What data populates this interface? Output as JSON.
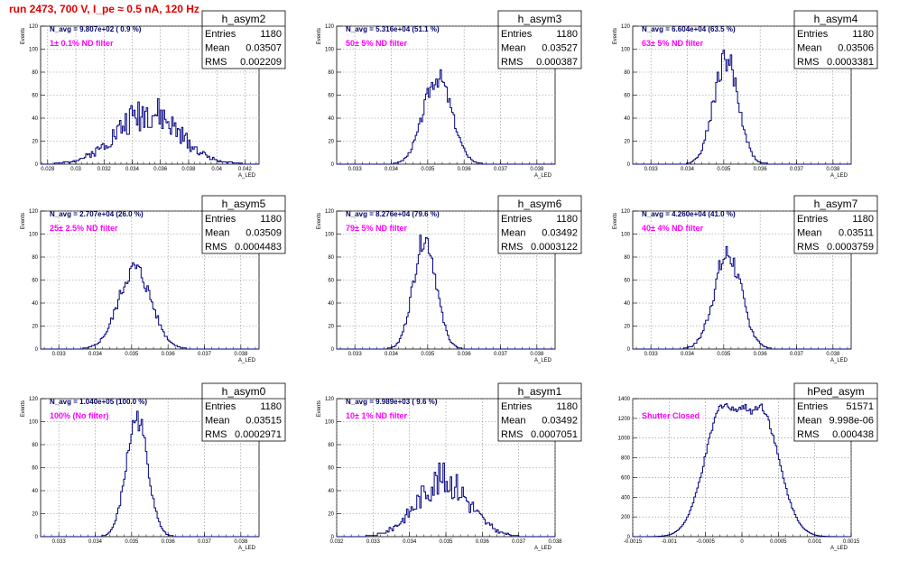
{
  "header": {
    "run_title": "run 2473,   700 V, I_pe ≈ 0.5 nA, 120 Hz"
  },
  "chart_data": [
    {
      "type": "histogram",
      "id": "h_asym2",
      "ylabel": "Events",
      "xlabel": "A_LED",
      "xlim": [
        0.0275,
        0.043
      ],
      "ylim": [
        0,
        120
      ],
      "xticks": [
        0.028,
        0.03,
        0.032,
        0.034,
        0.036,
        0.038,
        0.04,
        0.042
      ],
      "xtick_labels": [
        "0.028",
        "0.03",
        "0.032",
        "0.034",
        "0.036",
        "0.038",
        "0.04",
        "0.042"
      ],
      "yticks": [
        0,
        20,
        40,
        60,
        80,
        100,
        120
      ],
      "annotation": "N_avg = 9.807e+02 ( 0.9 %)",
      "filter_label": "1± 0.1% ND filter",
      "stats": {
        "title": "h_asym2",
        "rows": [
          {
            "name": "Entries",
            "value": "1180"
          },
          {
            "name": "Mean",
            "value": "0.03507"
          },
          {
            "name": "RMS",
            "value": "0.002209"
          }
        ]
      },
      "mean": 0.03507,
      "rms": 0.002209,
      "peak": 45,
      "shape": "single",
      "bin_width": 0.0001,
      "noise": 0.35,
      "seed": 2
    },
    {
      "type": "histogram",
      "id": "h_asym3",
      "ylabel": "Events",
      "xlabel": "A_LED",
      "xlim": [
        0.0325,
        0.0385
      ],
      "ylim": [
        0,
        120
      ],
      "xticks": [
        0.033,
        0.034,
        0.035,
        0.036,
        0.037,
        0.038
      ],
      "xtick_labels": [
        "0.033",
        "0.034",
        "0.035",
        "0.036",
        "0.037",
        "0.038"
      ],
      "yticks": [
        0,
        20,
        40,
        60,
        80,
        100,
        120
      ],
      "annotation": "N_avg = 5.316e+04 (51.1 %)",
      "filter_label": "50± 5% ND filter",
      "stats": {
        "title": "h_asym3",
        "rows": [
          {
            "name": "Entries",
            "value": "1180"
          },
          {
            "name": "Mean",
            "value": "0.03527"
          },
          {
            "name": "RMS",
            "value": "0.000387"
          }
        ]
      },
      "mean": 0.03527,
      "rms": 0.000387,
      "peak": 76,
      "shape": "single",
      "bin_width": 4e-05,
      "noise": 0.12,
      "seed": 3
    },
    {
      "type": "histogram",
      "id": "h_asym4",
      "ylabel": "Events",
      "xlabel": "A_LED",
      "xlim": [
        0.0325,
        0.0385
      ],
      "ylim": [
        0,
        120
      ],
      "xticks": [
        0.033,
        0.034,
        0.035,
        0.036,
        0.037,
        0.038
      ],
      "xtick_labels": [
        "0.033",
        "0.034",
        "0.035",
        "0.036",
        "0.037",
        "0.038"
      ],
      "yticks": [
        0,
        20,
        40,
        60,
        80,
        100,
        120
      ],
      "annotation": "N_avg = 6.604e+04 (63.5 %)",
      "filter_label": "63± 5% ND filter",
      "stats": {
        "title": "h_asym4",
        "rows": [
          {
            "name": "Entries",
            "value": "1180"
          },
          {
            "name": "Mean",
            "value": "0.03506"
          },
          {
            "name": "RMS",
            "value": "0.0003381"
          }
        ]
      },
      "mean": 0.03506,
      "rms": 0.0003381,
      "peak": 92,
      "shape": "single",
      "bin_width": 4e-05,
      "noise": 0.14,
      "seed": 4
    },
    {
      "type": "histogram",
      "id": "h_asym5",
      "ylabel": "Events",
      "xlabel": "A_LED",
      "xlim": [
        0.0325,
        0.0385
      ],
      "ylim": [
        0,
        120
      ],
      "xticks": [
        0.033,
        0.034,
        0.035,
        0.036,
        0.037,
        0.038
      ],
      "xtick_labels": [
        "0.033",
        "0.034",
        "0.035",
        "0.036",
        "0.037",
        "0.038"
      ],
      "yticks": [
        0,
        20,
        40,
        60,
        80,
        100,
        120
      ],
      "annotation": "N_avg = 2.707e+04 (26.0 %)",
      "filter_label": "25± 2.5% ND filter",
      "stats": {
        "title": "h_asym5",
        "rows": [
          {
            "name": "Entries",
            "value": "1180"
          },
          {
            "name": "Mean",
            "value": "0.03509"
          },
          {
            "name": "RMS",
            "value": "0.0004483"
          }
        ]
      },
      "mean": 0.03509,
      "rms": 0.0004483,
      "peak": 70,
      "shape": "single",
      "bin_width": 4e-05,
      "noise": 0.12,
      "seed": 5
    },
    {
      "type": "histogram",
      "id": "h_asym6",
      "ylabel": "Events",
      "xlabel": "A_LED",
      "xlim": [
        0.0325,
        0.0385
      ],
      "ylim": [
        0,
        120
      ],
      "xticks": [
        0.033,
        0.034,
        0.035,
        0.036,
        0.037,
        0.038
      ],
      "xtick_labels": [
        "0.033",
        "0.034",
        "0.035",
        "0.036",
        "0.037",
        "0.038"
      ],
      "yticks": [
        0,
        20,
        40,
        60,
        80,
        100,
        120
      ],
      "annotation": "N_avg = 8.276e+04 (79.6 %)",
      "filter_label": "79± 5% ND filter",
      "stats": {
        "title": "h_asym6",
        "rows": [
          {
            "name": "Entries",
            "value": "1180"
          },
          {
            "name": "Mean",
            "value": "0.03492"
          },
          {
            "name": "RMS",
            "value": "0.0003122"
          }
        ]
      },
      "mean": 0.03492,
      "rms": 0.0003122,
      "peak": 97,
      "shape": "single",
      "bin_width": 4e-05,
      "noise": 0.1,
      "seed": 6
    },
    {
      "type": "histogram",
      "id": "h_asym7",
      "ylabel": "Events",
      "xlabel": "A_LED",
      "xlim": [
        0.0325,
        0.0385
      ],
      "ylim": [
        0,
        120
      ],
      "xticks": [
        0.033,
        0.034,
        0.035,
        0.036,
        0.037,
        0.038
      ],
      "xtick_labels": [
        "0.033",
        "0.034",
        "0.035",
        "0.036",
        "0.037",
        "0.038"
      ],
      "yticks": [
        0,
        20,
        40,
        60,
        80,
        100,
        120
      ],
      "annotation": "N_avg = 4.260e+04 (41.0 %)",
      "filter_label": "40± 4% ND filter",
      "stats": {
        "title": "h_asym7",
        "rows": [
          {
            "name": "Entries",
            "value": "1180"
          },
          {
            "name": "Mean",
            "value": "0.03511"
          },
          {
            "name": "RMS",
            "value": "0.0003759"
          }
        ]
      },
      "mean": 0.03511,
      "rms": 0.0003759,
      "peak": 82,
      "shape": "single",
      "bin_width": 4e-05,
      "noise": 0.14,
      "seed": 7
    },
    {
      "type": "histogram",
      "id": "h_asym0",
      "ylabel": "Events",
      "xlabel": "A_LED",
      "xlim": [
        0.0325,
        0.0385
      ],
      "ylim": [
        0,
        120
      ],
      "xticks": [
        0.033,
        0.034,
        0.035,
        0.036,
        0.037,
        0.038
      ],
      "xtick_labels": [
        "0.033",
        "0.034",
        "0.035",
        "0.036",
        "0.037",
        "0.038"
      ],
      "yticks": [
        0,
        20,
        40,
        60,
        80,
        100,
        120
      ],
      "annotation": "N_avg = 1.040e+05 (100.0 %)",
      "filter_label": "100% (No filter)",
      "stats": {
        "title": "h_asym0",
        "rows": [
          {
            "name": "Entries",
            "value": "1180"
          },
          {
            "name": "Mean",
            "value": "0.03515"
          },
          {
            "name": "RMS",
            "value": "0.0002971"
          }
        ]
      },
      "mean": 0.03515,
      "rms": 0.0002971,
      "peak": 103,
      "shape": "single",
      "bin_width": 4e-05,
      "noise": 0.1,
      "seed": 8
    },
    {
      "type": "histogram",
      "id": "h_asym1",
      "ylabel": "Events",
      "xlabel": "A_LED",
      "xlim": [
        0.032,
        0.038
      ],
      "ylim": [
        0,
        120
      ],
      "xticks": [
        0.032,
        0.033,
        0.034,
        0.035,
        0.036,
        0.037,
        0.038
      ],
      "xtick_labels": [
        "0.032",
        "0.033",
        "0.034",
        "0.035",
        "0.036",
        "0.037",
        "0.038"
      ],
      "yticks": [
        0,
        20,
        40,
        60,
        80,
        100,
        120
      ],
      "annotation": "N_avg = 9.989e+03 ( 9.6 %)",
      "filter_label": "10± 1% ND filter",
      "stats": {
        "title": "h_asym1",
        "rows": [
          {
            "name": "Entries",
            "value": "1180"
          },
          {
            "name": "Mean",
            "value": "0.03492"
          },
          {
            "name": "RMS",
            "value": "0.0007051"
          }
        ]
      },
      "mean": 0.03492,
      "rms": 0.0007051,
      "peak": 50,
      "shape": "single",
      "bin_width": 4e-05,
      "noise": 0.3,
      "seed": 9
    },
    {
      "type": "histogram",
      "id": "hPed_asym",
      "ylabel": "",
      "xlabel": "A_LED",
      "xlim": [
        -0.0015,
        0.0015
      ],
      "ylim": [
        0,
        1400
      ],
      "xticks": [
        -0.0015,
        -0.001,
        -0.0005,
        0,
        0.0005,
        0.001,
        0.0015
      ],
      "xtick_labels": [
        "-0.0015",
        "-0.001",
        "-0.0005",
        "0",
        "0.0005",
        "0.001",
        "0.0015"
      ],
      "yticks": [
        0,
        200,
        400,
        600,
        800,
        1000,
        1200,
        1400
      ],
      "annotation": "",
      "filter_label": "Shutter Closed",
      "stats": {
        "title": "hPed_asym",
        "rows": [
          {
            "name": "Entries",
            "value": "51571"
          },
          {
            "name": "Mean",
            "value": "9.998e-06"
          },
          {
            "name": "RMS",
            "value": "0.000438"
          }
        ]
      },
      "mean": 1e-05,
      "rms": 0.000438,
      "peak": 1350,
      "shape": "double",
      "peaks": [
        -0.00024,
        0.00024
      ],
      "peak_heights": [
        1350,
        1330
      ],
      "sigma": 0.00026,
      "dip": 0.73,
      "bin_width": 2e-05,
      "noise": 0.03,
      "seed": 10
    }
  ]
}
